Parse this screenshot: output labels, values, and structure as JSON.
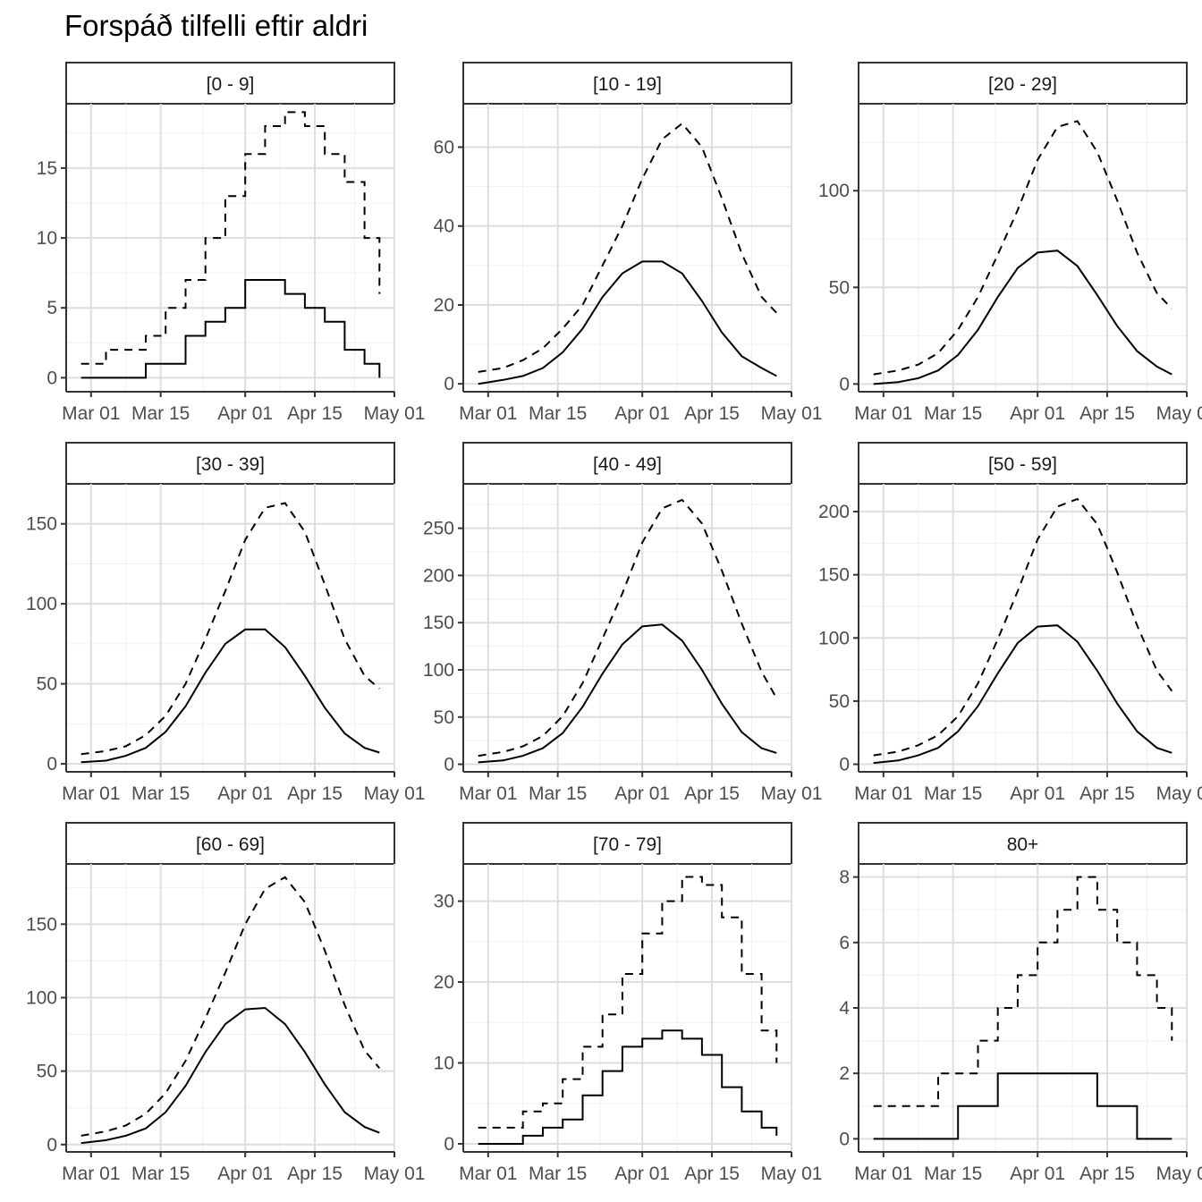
{
  "title": "Forspáð tilfelli eftir aldri",
  "chart_data": {
    "type": "line",
    "title": "Forspáð tilfelli eftir aldri",
    "layout": "3x3 facets, free y scales",
    "x_range": [
      "2020-02-25",
      "2020-05-01"
    ],
    "x_ticks": [
      {
        "date": "2020-03-01",
        "label": "Mar 01"
      },
      {
        "date": "2020-03-15",
        "label": "Mar 15"
      },
      {
        "date": "2020-04-01",
        "label": "Apr 01"
      },
      {
        "date": "2020-04-15",
        "label": "Apr 15"
      },
      {
        "date": "2020-05-01",
        "label": "May 01"
      }
    ],
    "grid": true,
    "dates": [
      "2020-02-28",
      "2020-03-04",
      "2020-03-08",
      "2020-03-12",
      "2020-03-16",
      "2020-03-20",
      "2020-03-24",
      "2020-03-28",
      "2020-04-01",
      "2020-04-05",
      "2020-04-09",
      "2020-04-13",
      "2020-04-17",
      "2020-04-21",
      "2020-04-25",
      "2020-04-28"
    ],
    "series_styles": {
      "median": "solid",
      "upper": "dashed"
    },
    "facets": [
      {
        "label": "[0 - 9]",
        "ylim": [
          -1,
          19.6
        ],
        "yticks": [
          0,
          5,
          10,
          15
        ],
        "step": true,
        "median": [
          0,
          0,
          0,
          1,
          1,
          3,
          4,
          5,
          7,
          7,
          6,
          5,
          4,
          2,
          1,
          0
        ],
        "upper": [
          1,
          2,
          2,
          3,
          5,
          7,
          10,
          13,
          16,
          18,
          19,
          18,
          16,
          14,
          10,
          6
        ]
      },
      {
        "label": "[10 - 19]",
        "ylim": [
          -2,
          71
        ],
        "yticks": [
          0,
          20,
          40,
          60
        ],
        "median": [
          0,
          1,
          2,
          4,
          8,
          14,
          22,
          28,
          31,
          31,
          28,
          21,
          13,
          7,
          4,
          2
        ],
        "upper": [
          3,
          4,
          6,
          9,
          14,
          20,
          30,
          40,
          52,
          62,
          66,
          60,
          47,
          33,
          22,
          18
        ]
      },
      {
        "label": "[20 - 29]",
        "ylim": [
          -4,
          145
        ],
        "yticks": [
          0,
          50,
          100
        ],
        "median": [
          0,
          1,
          3,
          7,
          15,
          28,
          45,
          60,
          68,
          69,
          61,
          46,
          30,
          17,
          9,
          5
        ],
        "upper": [
          5,
          7,
          10,
          16,
          28,
          45,
          67,
          90,
          116,
          133,
          136,
          120,
          95,
          68,
          47,
          39
        ]
      },
      {
        "label": "[30 - 39]",
        "ylim": [
          -5,
          175
        ],
        "yticks": [
          0,
          50,
          100,
          150
        ],
        "median": [
          1,
          2,
          5,
          10,
          20,
          36,
          57,
          75,
          84,
          84,
          73,
          55,
          35,
          19,
          10,
          7
        ],
        "upper": [
          6,
          8,
          11,
          18,
          30,
          50,
          78,
          108,
          140,
          160,
          163,
          145,
          112,
          78,
          55,
          47
        ]
      },
      {
        "label": "[40 - 49]",
        "ylim": [
          -8,
          297
        ],
        "yticks": [
          0,
          50,
          100,
          150,
          200,
          250
        ],
        "median": [
          2,
          4,
          9,
          17,
          33,
          61,
          96,
          127,
          146,
          148,
          131,
          100,
          64,
          34,
          17,
          12
        ],
        "upper": [
          9,
          13,
          19,
          30,
          51,
          86,
          133,
          181,
          235,
          271,
          280,
          255,
          205,
          149,
          98,
          70
        ]
      },
      {
        "label": "[50 - 59]",
        "ylim": [
          -6,
          222
        ],
        "yticks": [
          0,
          50,
          100,
          150,
          200
        ],
        "median": [
          1,
          3,
          7,
          13,
          26,
          46,
          72,
          96,
          109,
          110,
          97,
          74,
          48,
          26,
          13,
          9
        ],
        "upper": [
          7,
          10,
          15,
          23,
          38,
          64,
          99,
          137,
          178,
          204,
          210,
          190,
          152,
          110,
          74,
          58
        ]
      },
      {
        "label": "[60 - 69]",
        "ylim": [
          -5,
          191
        ],
        "yticks": [
          0,
          50,
          100,
          150
        ],
        "median": [
          1,
          3,
          6,
          11,
          22,
          40,
          63,
          82,
          92,
          93,
          82,
          63,
          41,
          22,
          12,
          8
        ],
        "upper": [
          6,
          9,
          13,
          21,
          35,
          57,
          86,
          117,
          150,
          174,
          182,
          165,
          132,
          95,
          64,
          52
        ]
      },
      {
        "label": "[70 - 79]",
        "ylim": [
          -1,
          34.6
        ],
        "yticks": [
          0,
          10,
          20,
          30
        ],
        "step": true,
        "median": [
          0,
          0,
          1,
          2,
          3,
          6,
          9,
          12,
          13,
          14,
          13,
          11,
          7,
          4,
          2,
          1
        ],
        "upper": [
          2,
          2,
          4,
          5,
          8,
          12,
          16,
          21,
          26,
          30,
          33,
          32,
          28,
          21,
          14,
          10
        ]
      },
      {
        "label": "80+",
        "ylim": [
          -0.4,
          8.4
        ],
        "yticks": [
          0,
          2,
          4,
          6,
          8
        ],
        "step": true,
        "median": [
          0,
          0,
          0,
          0,
          1,
          1,
          2,
          2,
          2,
          2,
          2,
          1,
          1,
          0,
          0,
          0
        ],
        "upper": [
          1,
          1,
          1,
          2,
          2,
          3,
          4,
          5,
          6,
          7,
          8,
          7,
          6,
          5,
          4,
          3
        ]
      }
    ]
  }
}
